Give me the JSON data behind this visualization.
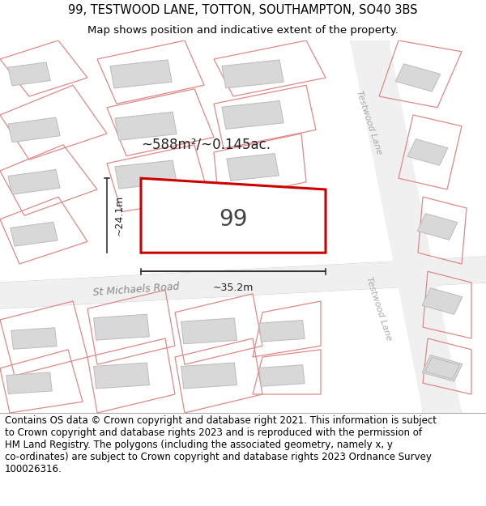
{
  "title_line1": "99, TESTWOOD LANE, TOTTON, SOUTHAMPTON, SO40 3BS",
  "title_line2": "Map shows position and indicative extent of the property.",
  "footer_text": "Contains OS data © Crown copyright and database right 2021. This information is subject\nto Crown copyright and database rights 2023 and is reproduced with the permission of\nHM Land Registry. The polygons (including the associated geometry, namely x, y\nco-ordinates) are subject to Crown copyright and database rights 2023 Ordnance Survey\n100026316.",
  "map_bg": "#ffffff",
  "plot_fill": "#ffffff",
  "plot_stroke": "#cc0000",
  "neighbor_fill": "#e8e8e8",
  "neighbor_stroke": "#e08888",
  "area_text": "~588m²/~0.145ac.",
  "label_99": "99",
  "dim_width": "~35.2m",
  "dim_height": "~24.1m",
  "road_label_stm": "St Michaels Road",
  "road_label_tw1": "Testwood Lane",
  "road_label_tw2": "Testwood Lane",
  "title_fontsize": 10.5,
  "subtitle_fontsize": 9.5,
  "footer_fontsize": 8.5
}
